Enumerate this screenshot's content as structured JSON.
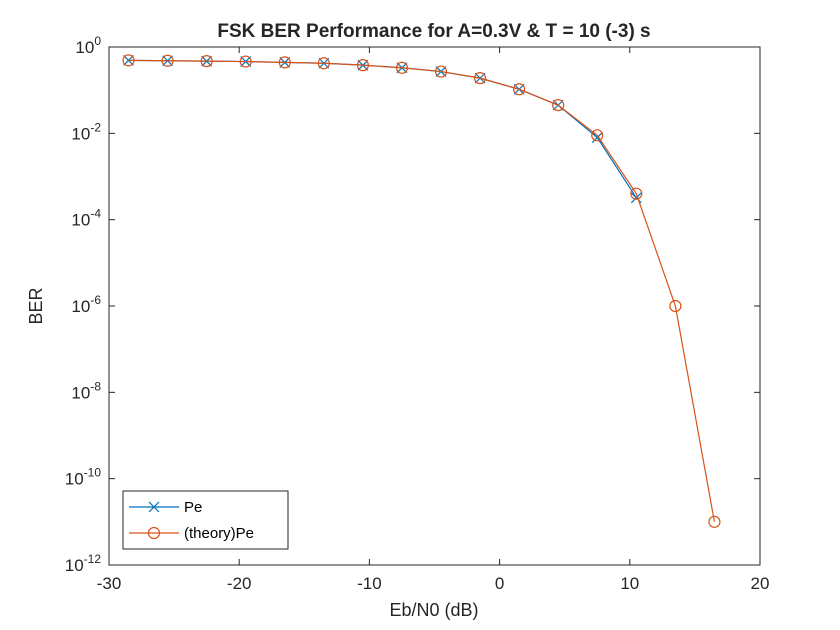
{
  "chart_data": {
    "type": "line",
    "title": "FSK BER Performance for A=0.3V & T = 10 (-3) s",
    "xlabel": "Eb/N0 (dB)",
    "ylabel": "BER",
    "xlim": [
      -30,
      20
    ],
    "ylim": [
      1e-12,
      1
    ],
    "yscale": "log",
    "grid": false,
    "legend_position": "bottom-left",
    "x_ticks": [
      {
        "value": -30,
        "label": "-30"
      },
      {
        "value": -20,
        "label": "-20"
      },
      {
        "value": -10,
        "label": "-10"
      },
      {
        "value": 0,
        "label": "0"
      },
      {
        "value": 10,
        "label": "10"
      },
      {
        "value": 20,
        "label": "20"
      }
    ],
    "y_ticks": [
      {
        "value": 1,
        "base": "10",
        "exp": "0"
      },
      {
        "value": 0.01,
        "base": "10",
        "exp": "-2"
      },
      {
        "value": 0.0001,
        "base": "10",
        "exp": "-4"
      },
      {
        "value": 1e-06,
        "base": "10",
        "exp": "-6"
      },
      {
        "value": 1e-08,
        "base": "10",
        "exp": "-8"
      },
      {
        "value": 1e-10,
        "base": "10",
        "exp": "-10"
      },
      {
        "value": 1e-12,
        "base": "10",
        "exp": "-12"
      }
    ],
    "series": [
      {
        "name": "Pe",
        "color": "#0072BD",
        "marker": "x",
        "x": [
          -28.5,
          -25.5,
          -22.5,
          -19.5,
          -16.5,
          -13.5,
          -10.5,
          -7.5,
          -4.5,
          -1.5,
          1.5,
          4.5,
          7.5,
          10.5
        ],
        "y": [
          0.49,
          0.48,
          0.47,
          0.46,
          0.44,
          0.42,
          0.38,
          0.33,
          0.27,
          0.19,
          0.105,
          0.045,
          0.008,
          0.00032
        ]
      },
      {
        "name": "(theory)Pe",
        "color": "#D95319",
        "marker": "o",
        "x": [
          -28.5,
          -25.5,
          -22.5,
          -19.5,
          -16.5,
          -13.5,
          -10.5,
          -7.5,
          -4.5,
          -1.5,
          1.5,
          4.5,
          7.5,
          10.5,
          13.5,
          16.5
        ],
        "y": [
          0.49,
          0.48,
          0.47,
          0.46,
          0.44,
          0.42,
          0.38,
          0.33,
          0.27,
          0.19,
          0.105,
          0.045,
          0.009,
          0.0004,
          1e-06,
          1e-11
        ]
      }
    ]
  }
}
